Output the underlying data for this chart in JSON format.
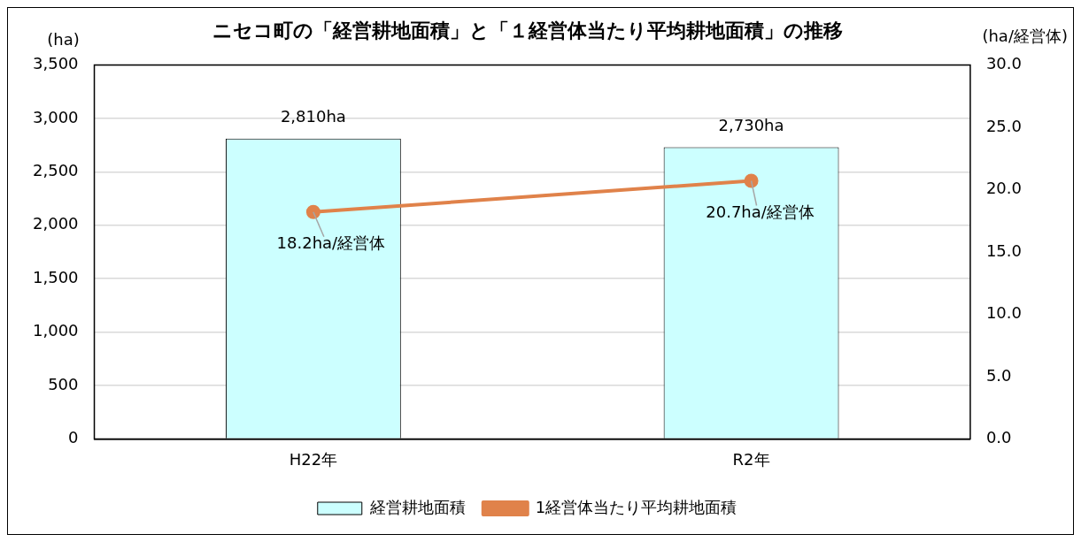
{
  "chart_data": {
    "type": "bar",
    "title": "ニセコ町の「経営耕地面積」と「１経営体当たり平均耕地面積」の推移",
    "ylabel": "(ha)",
    "y2label": "(ha/経営体)",
    "categories": [
      "H22年",
      "R2年"
    ],
    "series": [
      {
        "name": "経営耕地面積",
        "color": "#ccffff",
        "values": [
          2810,
          2730
        ],
        "value_labels": [
          "2,810ha",
          "2,730ha"
        ]
      },
      {
        "name": "1経営体当たり平均耕地面積",
        "type": "line",
        "axis": "y2",
        "color": "#e0824a",
        "marker": "circle",
        "values": [
          18.2,
          20.7
        ],
        "value_labels": [
          "18.2ha/経営体",
          "20.7ha/経営体"
        ]
      }
    ],
    "ylim": [
      0,
      3500
    ],
    "yticks": [
      0,
      500,
      {
        "value": 1000,
        "label": "1,000"
      },
      {
        "value": 1500,
        "label": "1,500"
      },
      {
        "value": 2000,
        "label": "2,000"
      },
      {
        "value": 2500,
        "label": "2,500"
      },
      {
        "value": 3000,
        "label": "3,000"
      },
      {
        "value": 3500,
        "label": "3,500"
      }
    ],
    "y2lim": [
      0,
      30
    ],
    "y2ticks": [
      {
        "value": 0,
        "label": "0.0"
      },
      {
        "value": 5,
        "label": "5.0"
      },
      {
        "value": 10,
        "label": "10.0"
      },
      {
        "value": 15,
        "label": "15.0"
      },
      {
        "value": 20,
        "label": "20.0"
      },
      {
        "value": 25,
        "label": "25.0"
      },
      {
        "value": 30,
        "label": "30.0"
      }
    ],
    "grid": "y",
    "legend": "bottom"
  }
}
